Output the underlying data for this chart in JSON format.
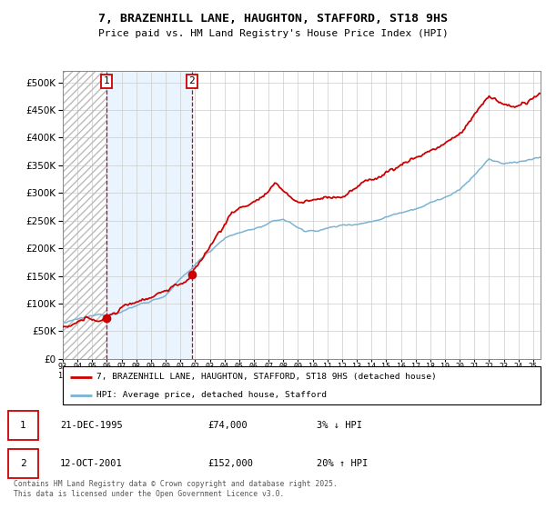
{
  "title": "7, BRAZENHILL LANE, HAUGHTON, STAFFORD, ST18 9HS",
  "subtitle": "Price paid vs. HM Land Registry's House Price Index (HPI)",
  "sale1_date": "21-DEC-1995",
  "sale1_price": 74000,
  "sale1_label": "3% ↓ HPI",
  "sale2_date": "12-OCT-2001",
  "sale2_price": 152000,
  "sale2_label": "20% ↑ HPI",
  "legend_line1": "7, BRAZENHILL LANE, HAUGHTON, STAFFORD, ST18 9HS (detached house)",
  "legend_line2": "HPI: Average price, detached house, Stafford",
  "footer": "Contains HM Land Registry data © Crown copyright and database right 2025.\nThis data is licensed under the Open Government Licence v3.0.",
  "hpi_color": "#7ab3d4",
  "price_color": "#cc0000",
  "ylim": [
    0,
    520000
  ],
  "yticks": [
    0,
    50000,
    100000,
    150000,
    200000,
    250000,
    300000,
    350000,
    400000,
    450000,
    500000
  ],
  "sale1_x": 1995.97,
  "sale2_x": 2001.79,
  "xmin": 1993.0,
  "xmax": 2025.5
}
